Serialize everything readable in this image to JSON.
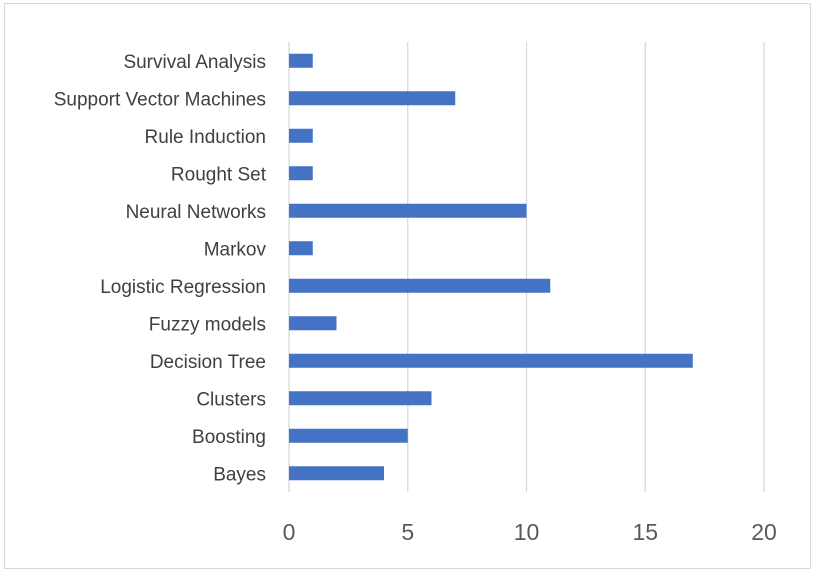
{
  "chart_data": {
    "type": "bar",
    "orientation": "horizontal",
    "categories": [
      "Bayes",
      "Boosting",
      "Clusters",
      "Decision Tree",
      "Fuzzy models",
      "Logistic Regression",
      "Markov",
      "Neural Networks",
      "Rought Set",
      "Rule Induction",
      "Support Vector Machines",
      "Survival Analysis"
    ],
    "values": [
      4,
      5,
      6,
      17,
      2,
      11,
      1,
      10,
      1,
      1,
      7,
      1
    ],
    "xlim": [
      0,
      20
    ],
    "xticks": [
      0,
      5,
      10,
      15,
      20
    ],
    "title": "",
    "xlabel": "",
    "ylabel": "",
    "grid": "vertical",
    "legend": "none",
    "bar_color": "#4472C4",
    "grid_color": "#d9d9d9"
  }
}
